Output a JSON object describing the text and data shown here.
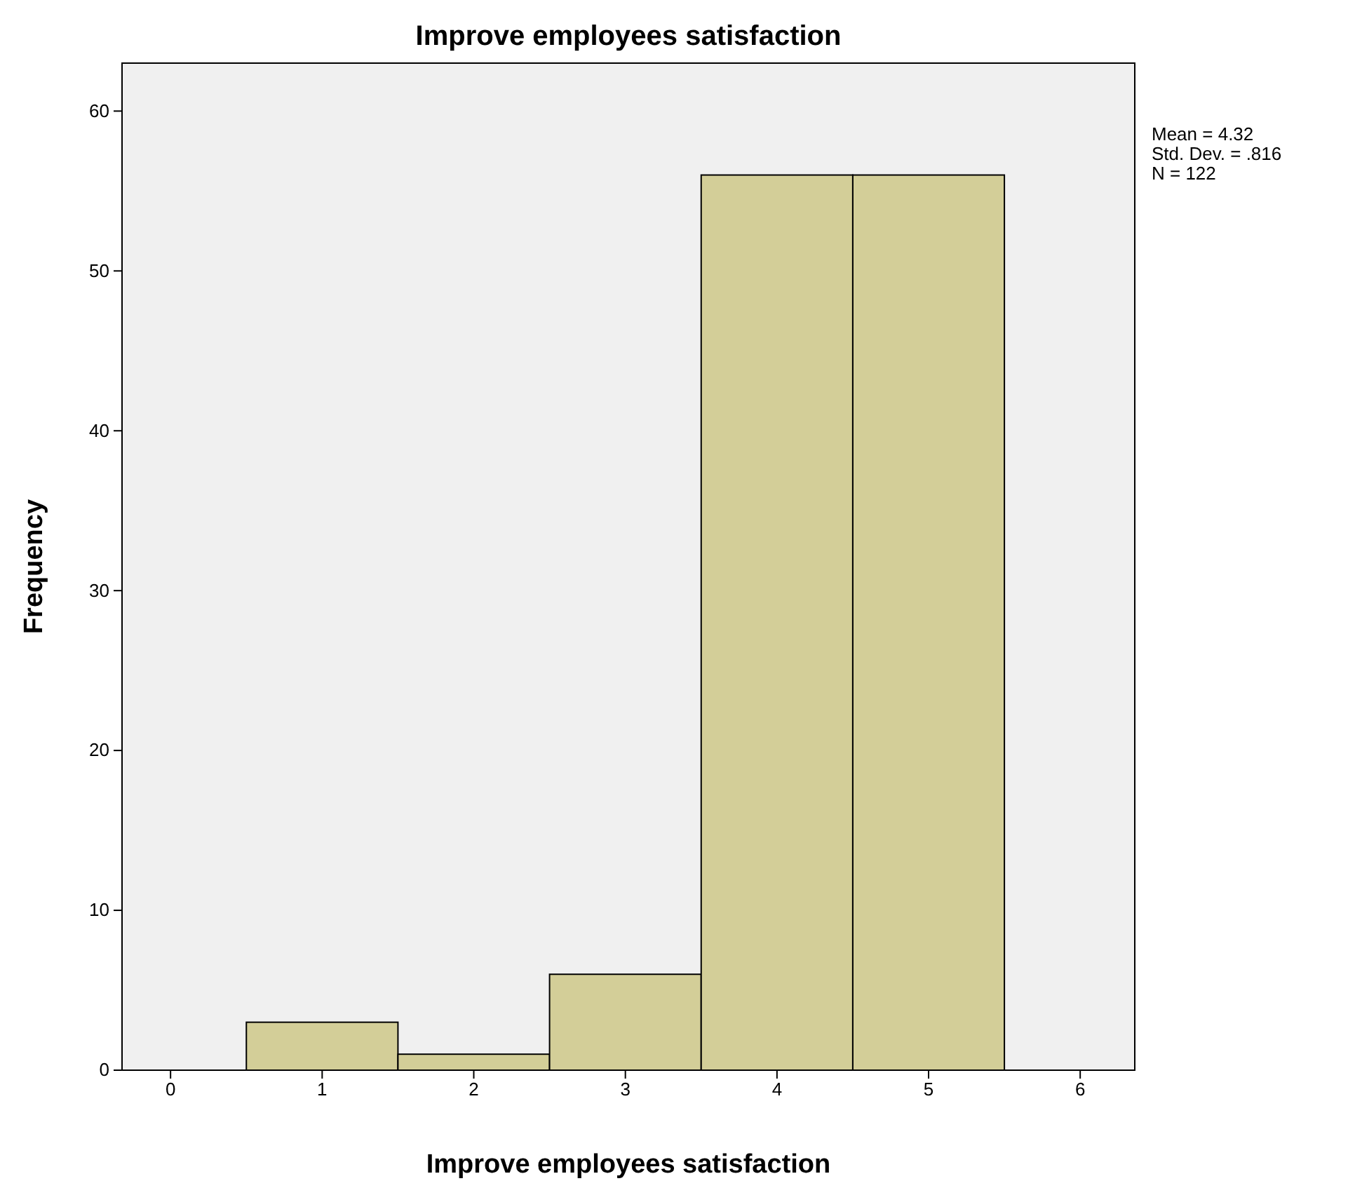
{
  "chart_data": {
    "type": "histogram",
    "title": "Improve employees satisfaction",
    "xlabel": "Improve employees satisfaction",
    "ylabel": "Frequency",
    "bins": [
      0.5,
      1.5,
      2.5,
      3.5,
      4.5,
      5.5
    ],
    "values": [
      3,
      1,
      6,
      56,
      56
    ],
    "color": "#d3ce98",
    "xlim": [
      -0.32,
      6.36
    ],
    "ylim": [
      0,
      63
    ],
    "xticks": [
      0,
      1,
      2,
      3,
      4,
      5,
      6
    ],
    "yticks": [
      0,
      10,
      20,
      30,
      40,
      50,
      60
    ],
    "annotations": [
      "Mean = 4.32",
      "Std. Dev. = .816",
      "N = 122"
    ]
  }
}
